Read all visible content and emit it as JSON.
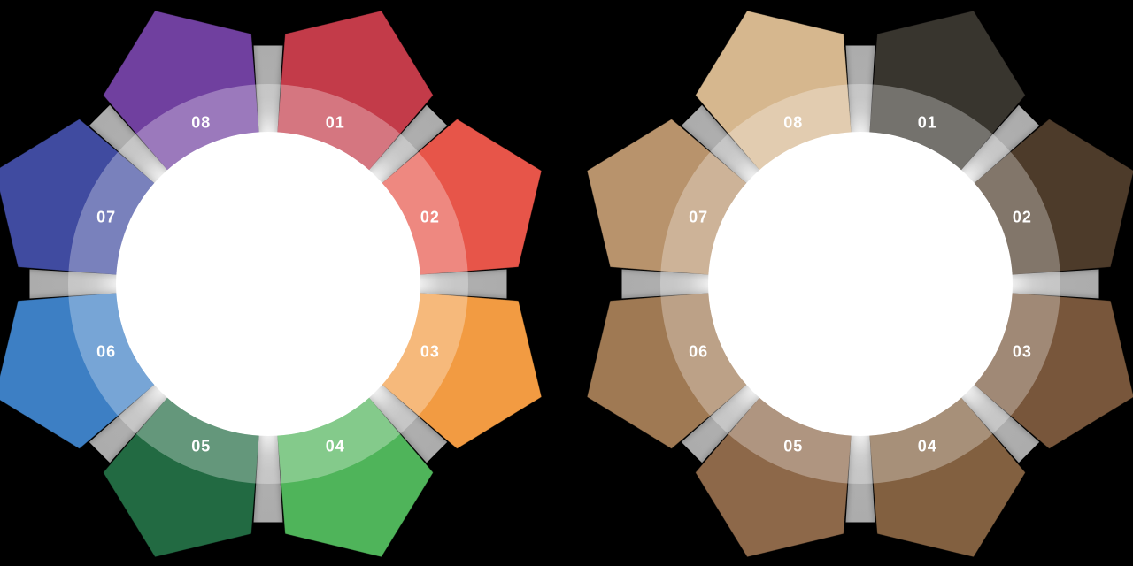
{
  "figure": {
    "description": "Two eight-step wheel infographics on a black background, each with pentagon petals around a white center circle, numbered 01 to 08",
    "background_color": "#000000",
    "label_color": "#FFFFFF",
    "connector_color": "#ACACAC",
    "ring_overlay": {
      "color": "#FFFFFF",
      "opacity": 0.3
    },
    "center_color": "#FFFFFF",
    "wheels": [
      {
        "id": "color-wheel",
        "side": "left",
        "segments": [
          {
            "label": "01",
            "color": "#C33A4A"
          },
          {
            "label": "02",
            "color": "#E75449"
          },
          {
            "label": "03",
            "color": "#F29B42"
          },
          {
            "label": "04",
            "color": "#4FB45A"
          },
          {
            "label": "05",
            "color": "#226B43"
          },
          {
            "label": "06",
            "color": "#3D7FC4"
          },
          {
            "label": "07",
            "color": "#3F4BA0"
          },
          {
            "label": "08",
            "color": "#6F409F"
          }
        ]
      },
      {
        "id": "sepia-wheel",
        "side": "right",
        "segments": [
          {
            "label": "01",
            "color": "#39342F"
          },
          {
            "label": "02",
            "color": "#4E3B2B"
          },
          {
            "label": "03",
            "color": "#78573A"
          },
          {
            "label": "04",
            "color": "#82603F"
          },
          {
            "label": "05",
            "color": "#8D6849"
          },
          {
            "label": "06",
            "color": "#9F7952"
          },
          {
            "label": "07",
            "color": "#B8936C"
          },
          {
            "label": "08",
            "color": "#D6B78E"
          }
        ]
      }
    ]
  }
}
